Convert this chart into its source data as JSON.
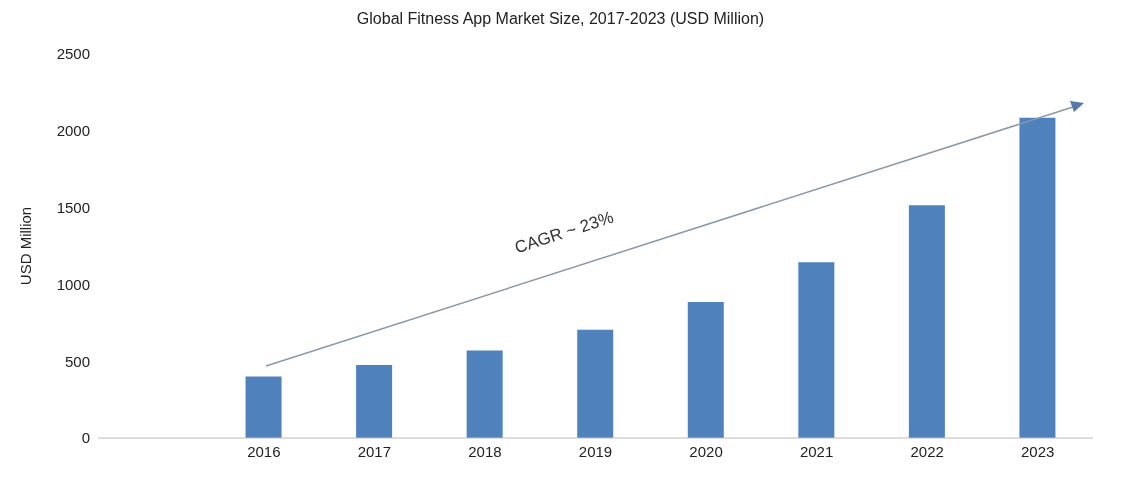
{
  "chart_data": {
    "type": "bar",
    "title": "Global Fitness App Market Size, 2017-2023 (USD Million)",
    "ylabel": "USD Million",
    "categories": [
      null,
      "2016",
      "2017",
      "2018",
      "2019",
      "2020",
      "2021",
      "2022",
      "2023"
    ],
    "values": [
      null,
      400,
      475,
      570,
      705,
      885,
      1145,
      1515,
      2085
    ],
    "color": "#4f81bd",
    "ylim": [
      0,
      2500
    ],
    "yticks": [
      0,
      500,
      1000,
      1500,
      2000,
      2500
    ],
    "grid": false,
    "legend": false,
    "annotations": [
      "CAGR ~ 23%"
    ]
  }
}
